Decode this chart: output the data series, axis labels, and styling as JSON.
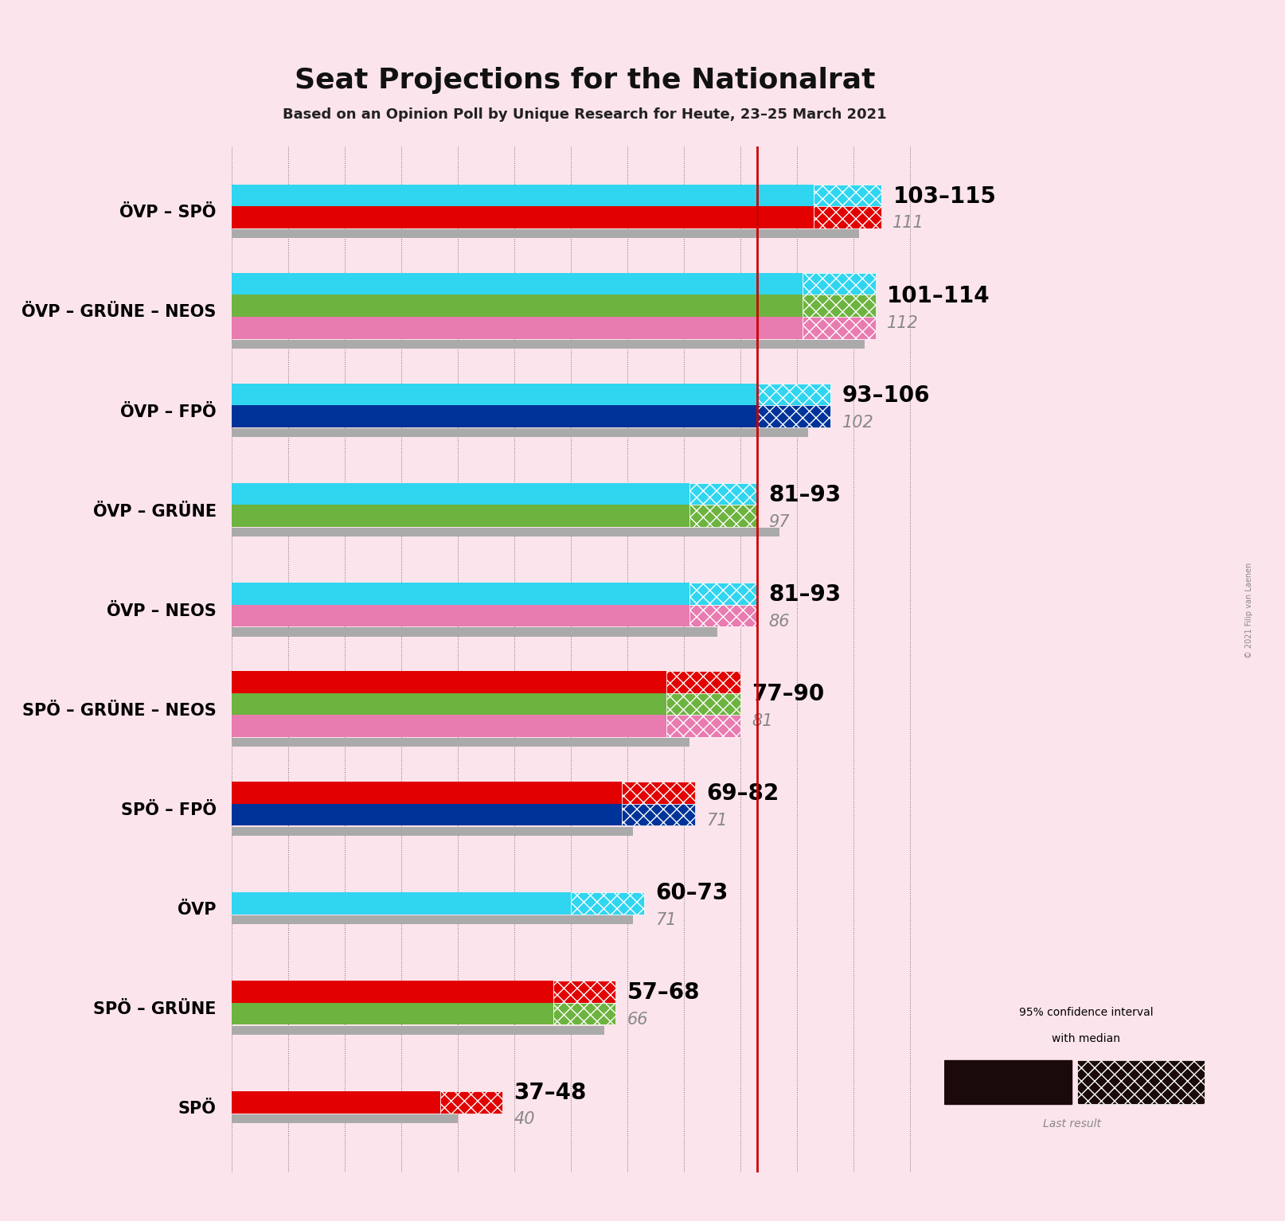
{
  "title": "Seat Projections for the Nationalrat",
  "subtitle": "Based on an Opinion Poll by Unique Research for Heute, 23–25 March 2021",
  "copyright": "© 2021 Filip van Laenen",
  "background_color": "#fce4ec",
  "majority_line": 93,
  "coalitions": [
    {
      "name": "ÖVP – SPÖ",
      "underline": false,
      "low": 103,
      "high": 115,
      "median": 111,
      "last_result": 111,
      "parties": [
        "ÖVP",
        "SPÖ"
      ],
      "colors": [
        "#30D5F0",
        "#E20000"
      ]
    },
    {
      "name": "ÖVP – GRÜNE – NEOS",
      "underline": false,
      "low": 101,
      "high": 114,
      "median": 112,
      "last_result": 112,
      "parties": [
        "ÖVP",
        "GRÜNE",
        "NEOS"
      ],
      "colors": [
        "#30D5F0",
        "#6DB33F",
        "#E87BB0"
      ]
    },
    {
      "name": "ÖVP – FPÖ",
      "underline": false,
      "low": 93,
      "high": 106,
      "median": 102,
      "last_result": 102,
      "parties": [
        "ÖVP",
        "FPÖ"
      ],
      "colors": [
        "#30D5F0",
        "#003399"
      ]
    },
    {
      "name": "ÖVP – GRÜNE",
      "underline": true,
      "low": 81,
      "high": 93,
      "median": 97,
      "last_result": 97,
      "parties": [
        "ÖVP",
        "GRÜNE"
      ],
      "colors": [
        "#30D5F0",
        "#6DB33F"
      ]
    },
    {
      "name": "ÖVP – NEOS",
      "underline": false,
      "low": 81,
      "high": 93,
      "median": 86,
      "last_result": 86,
      "parties": [
        "ÖVP",
        "NEOS"
      ],
      "colors": [
        "#30D5F0",
        "#E87BB0"
      ]
    },
    {
      "name": "SPÖ – GRÜNE – NEOS",
      "underline": false,
      "low": 77,
      "high": 90,
      "median": 81,
      "last_result": 81,
      "parties": [
        "SPÖ",
        "GRÜNE",
        "NEOS"
      ],
      "colors": [
        "#E20000",
        "#6DB33F",
        "#E87BB0"
      ]
    },
    {
      "name": "SPÖ – FPÖ",
      "underline": false,
      "low": 69,
      "high": 82,
      "median": 71,
      "last_result": 71,
      "parties": [
        "SPÖ",
        "FPÖ"
      ],
      "colors": [
        "#E20000",
        "#003399"
      ]
    },
    {
      "name": "ÖVP",
      "underline": false,
      "low": 60,
      "high": 73,
      "median": 71,
      "last_result": 71,
      "parties": [
        "ÖVP"
      ],
      "colors": [
        "#30D5F0"
      ]
    },
    {
      "name": "SPÖ – GRÜNE",
      "underline": false,
      "low": 57,
      "high": 68,
      "median": 66,
      "last_result": 66,
      "parties": [
        "SPÖ",
        "GRÜNE"
      ],
      "colors": [
        "#E20000",
        "#6DB33F"
      ]
    },
    {
      "name": "SPÖ",
      "underline": false,
      "low": 37,
      "high": 48,
      "median": 40,
      "last_result": 40,
      "parties": [
        "SPÖ"
      ],
      "colors": [
        "#E20000"
      ]
    }
  ],
  "axis_max": 125,
  "majority_color": "#CC0000",
  "label_color": "#888888",
  "range_fontsize": 20,
  "median_fontsize": 15,
  "gray_bar_color": "#AAAAAA",
  "gray_last_color": "#BBBBBB"
}
